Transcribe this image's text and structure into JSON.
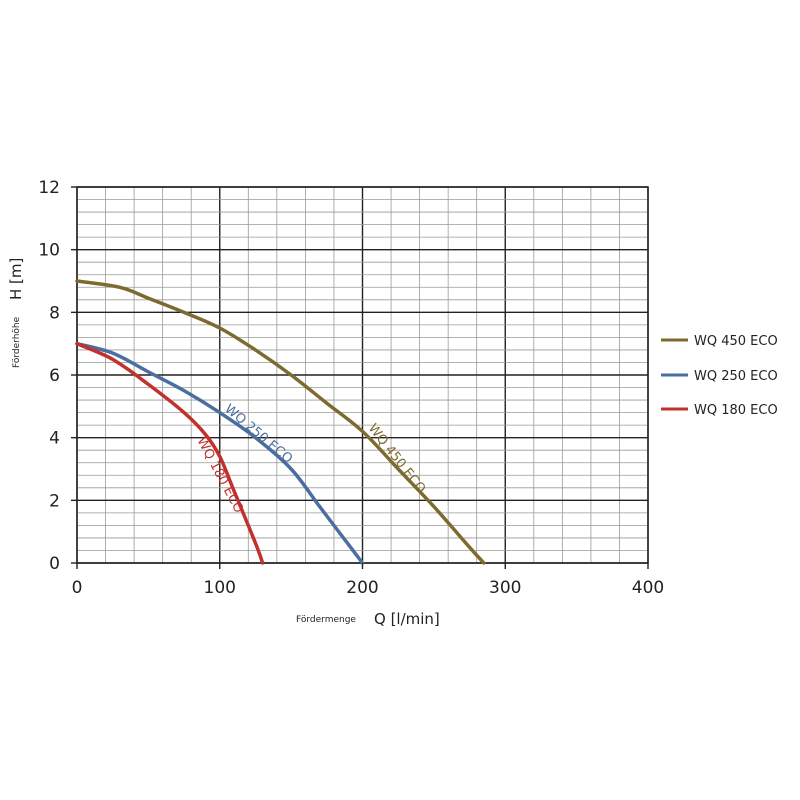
{
  "chart_data": {
    "type": "line",
    "xlabel_prefix": "Fördermenge",
    "xlabel": "Q [l/min]",
    "ylabel_prefix": "Förderhöhe",
    "ylabel": "H [m]",
    "xlim": [
      0,
      400
    ],
    "ylim": [
      0,
      12
    ],
    "xticks": [
      "0",
      "100",
      "200",
      "300",
      "400"
    ],
    "yticks": [
      "0",
      "2",
      "4",
      "6",
      "8",
      "10",
      "12"
    ],
    "x_minor_step": 20,
    "y_minor_step": 0.4,
    "grid": true,
    "legend_position": "right",
    "series": [
      {
        "name": "WQ 450 ECO",
        "color": "#7d6a2e",
        "x": [
          0,
          30,
          50,
          75,
          100,
          125,
          150,
          175,
          200,
          225,
          250,
          275,
          285
        ],
        "y": [
          9.0,
          8.8,
          8.45,
          8.0,
          7.5,
          6.8,
          6.0,
          5.1,
          4.2,
          3.0,
          1.8,
          0.5,
          0
        ]
      },
      {
        "name": "WQ 250 ECO",
        "color": "#4a6f9e",
        "x": [
          0,
          25,
          50,
          75,
          100,
          125,
          150,
          170,
          185,
          200
        ],
        "y": [
          7.0,
          6.7,
          6.1,
          5.5,
          4.8,
          4.0,
          3.0,
          1.8,
          0.9,
          0
        ]
      },
      {
        "name": "WQ 180 ECO",
        "color": "#c1312e",
        "x": [
          0,
          25,
          50,
          75,
          90,
          100,
          110,
          120,
          127,
          130
        ],
        "y": [
          7.0,
          6.5,
          5.7,
          4.8,
          4.1,
          3.4,
          2.3,
          1.2,
          0.4,
          0
        ]
      }
    ]
  }
}
